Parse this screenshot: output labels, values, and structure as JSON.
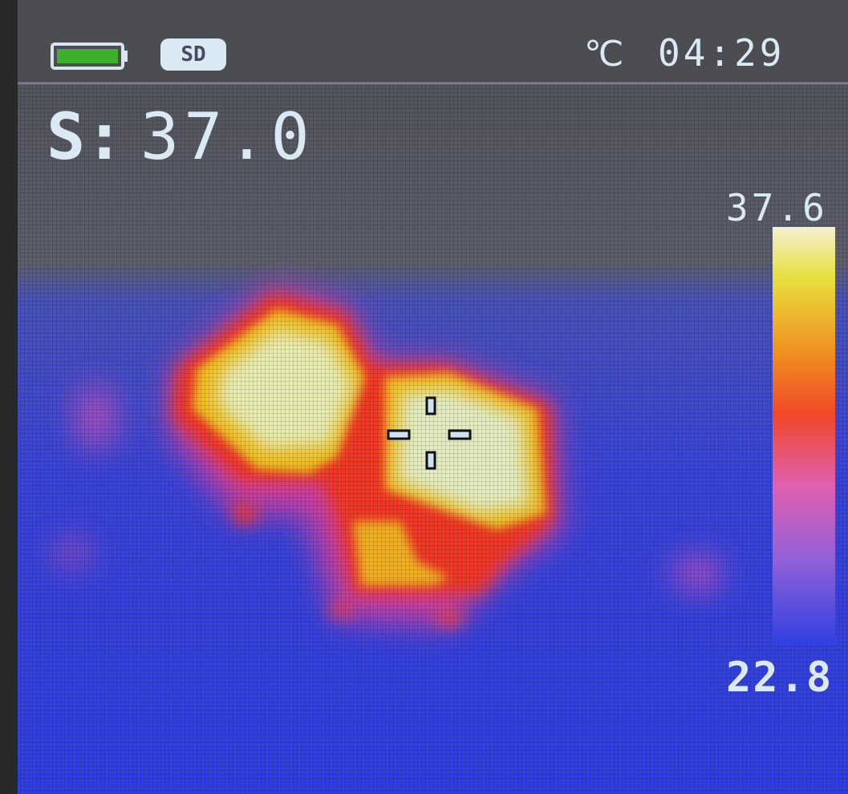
{
  "status_bar": {
    "sd_badge": "SD",
    "unit": "℃",
    "time": "04:29"
  },
  "spot": {
    "label": "S:",
    "value": "37.0"
  },
  "scale": {
    "max": "37.6",
    "min": "22.8"
  }
}
